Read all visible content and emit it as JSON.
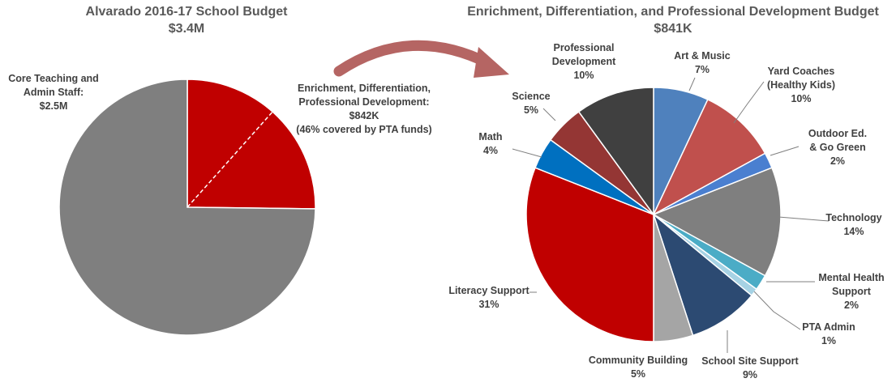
{
  "chart_data": [
    {
      "type": "pie",
      "title": "Alvarado 2016-17 School Budget",
      "subtitle": "$3.4M",
      "slices": [
        {
          "name": "Enrichment, Differentiation, Professional Development",
          "label_lines": [
            "Enrichment, Differentiation,",
            "Professional Development:",
            "$842K",
            "(46% covered by PTA funds)"
          ],
          "value": 0.842,
          "pta_share": 0.46,
          "color": "#C00000"
        },
        {
          "name": "Core Teaching and Admin Staff",
          "label_lines": [
            "Core Teaching and",
            "Admin Staff:",
            "$2.5M"
          ],
          "value": 2.5,
          "color": "#7F7F7F"
        }
      ]
    },
    {
      "type": "pie",
      "title": "Enrichment, Differentiation, and Professional Development Budget",
      "subtitle": "$841K",
      "slices": [
        {
          "name": "Art & Music",
          "label_lines": [
            "Art & Music",
            "7%"
          ],
          "value": 7,
          "color": "#4F81BD"
        },
        {
          "name": "Yard Coaches (Healthy Kids)",
          "label_lines": [
            "Yard Coaches",
            "(Healthy Kids)",
            "10%"
          ],
          "value": 10,
          "color": "#C0504D"
        },
        {
          "name": "Outdoor Ed. & Go Green",
          "label_lines": [
            "Outdoor Ed.",
            "& Go Green",
            "2%"
          ],
          "value": 2,
          "color": "#4A7FD0"
        },
        {
          "name": "Technology",
          "label_lines": [
            "Technology",
            "14%"
          ],
          "value": 14,
          "color": "#7F7F7F"
        },
        {
          "name": "Mental Health Support",
          "label_lines": [
            "Mental Health",
            "Support",
            "2%"
          ],
          "value": 2,
          "color": "#4BACC6"
        },
        {
          "name": "PTA Admin",
          "label_lines": [
            "PTA Admin",
            "1%"
          ],
          "value": 1,
          "color": "#A6D2E4"
        },
        {
          "name": "School Site Support",
          "label_lines": [
            "School Site Support",
            "9%"
          ],
          "value": 9,
          "color": "#2C4A72"
        },
        {
          "name": "Community Building",
          "label_lines": [
            "Community Building",
            "5%"
          ],
          "value": 5,
          "color": "#A5A5A5"
        },
        {
          "name": "Literacy Support",
          "label_lines": [
            "Literacy Support",
            "31%"
          ],
          "value": 31,
          "color": "#C00000"
        },
        {
          "name": "Math",
          "label_lines": [
            "Math",
            "4%"
          ],
          "value": 4,
          "color": "#0070C0"
        },
        {
          "name": "Science",
          "label_lines": [
            "Science",
            "5%"
          ],
          "value": 5,
          "color": "#943634"
        },
        {
          "name": "Professional Development",
          "label_lines": [
            "Professional",
            "Development",
            "10%"
          ],
          "value": 10,
          "color": "#404040"
        }
      ]
    }
  ],
  "colors": {
    "arrow": "#B56563",
    "text": "#404040",
    "title": "#595959",
    "leader": "#7F7F7F"
  }
}
